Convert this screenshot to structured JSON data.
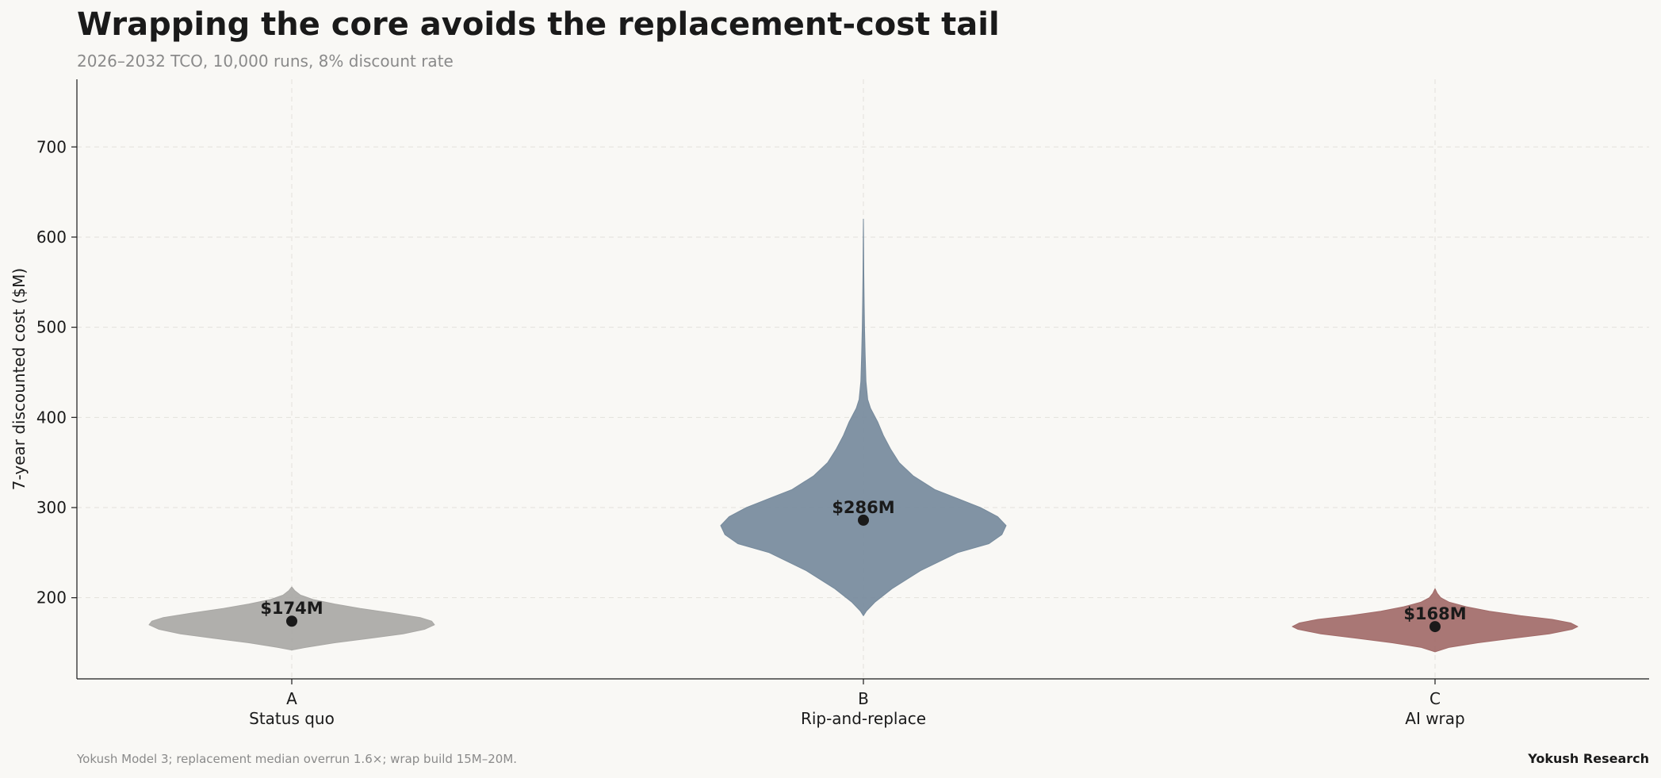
{
  "chart_data": {
    "type": "violin",
    "title": "Wrapping the core avoids the replacement-cost tail",
    "subtitle": "2026–2032 TCO, 10,000 runs, 8% discount rate",
    "ylabel": "7-year discounted cost ($M)",
    "xlabel": "",
    "ylim": [
      110,
      775
    ],
    "yticks": [
      200,
      300,
      400,
      500,
      600,
      700
    ],
    "grid": true,
    "categories": [
      "A",
      "B",
      "C"
    ],
    "category_sublabels": [
      "Status quo",
      "Rip-and-replace",
      "AI wrap"
    ],
    "series": [
      {
        "code": "A",
        "label": "Status quo",
        "color": "#a9a8a5",
        "median": 174,
        "median_label": "$174M",
        "profile": [
          [
            142,
            0
          ],
          [
            145,
            0.1
          ],
          [
            150,
            0.3
          ],
          [
            155,
            0.55
          ],
          [
            160,
            0.78
          ],
          [
            165,
            0.93
          ],
          [
            170,
            1.0
          ],
          [
            174,
            0.98
          ],
          [
            178,
            0.9
          ],
          [
            183,
            0.7
          ],
          [
            188,
            0.48
          ],
          [
            193,
            0.3
          ],
          [
            198,
            0.15
          ],
          [
            203,
            0.06
          ],
          [
            208,
            0.02
          ],
          [
            212,
            0
          ]
        ]
      },
      {
        "code": "B",
        "label": "Rip-and-replace",
        "color": "#768a9c",
        "median": 286,
        "median_label": "$286M",
        "profile": [
          [
            180,
            0
          ],
          [
            185,
            0.02
          ],
          [
            195,
            0.08
          ],
          [
            210,
            0.2
          ],
          [
            230,
            0.4
          ],
          [
            250,
            0.66
          ],
          [
            260,
            0.88
          ],
          [
            270,
            0.97
          ],
          [
            280,
            1.0
          ],
          [
            290,
            0.94
          ],
          [
            300,
            0.82
          ],
          [
            310,
            0.66
          ],
          [
            320,
            0.5
          ],
          [
            335,
            0.35
          ],
          [
            350,
            0.25
          ],
          [
            365,
            0.19
          ],
          [
            380,
            0.14
          ],
          [
            395,
            0.1
          ],
          [
            410,
            0.05
          ],
          [
            420,
            0.03
          ],
          [
            440,
            0.018
          ],
          [
            470,
            0.012
          ],
          [
            500,
            0.008
          ],
          [
            530,
            0.005
          ],
          [
            560,
            0.003
          ],
          [
            600,
            0.001
          ],
          [
            620,
            0
          ]
        ]
      },
      {
        "code": "C",
        "label": "AI wrap",
        "color": "#a26b69",
        "median": 168,
        "median_label": "$168M",
        "profile": [
          [
            140,
            0
          ],
          [
            145,
            0.1
          ],
          [
            150,
            0.3
          ],
          [
            155,
            0.55
          ],
          [
            160,
            0.8
          ],
          [
            165,
            0.96
          ],
          [
            168,
            1.0
          ],
          [
            172,
            0.95
          ],
          [
            176,
            0.82
          ],
          [
            180,
            0.6
          ],
          [
            185,
            0.38
          ],
          [
            190,
            0.22
          ],
          [
            195,
            0.1
          ],
          [
            200,
            0.04
          ],
          [
            205,
            0.015
          ],
          [
            210,
            0
          ]
        ]
      }
    ],
    "median_marker_color": "#1a1a1a",
    "footnote": "Yokush Model 3; replacement median overrun 1.6×; wrap build 15M–20M.",
    "credit": "Yokush Research"
  }
}
